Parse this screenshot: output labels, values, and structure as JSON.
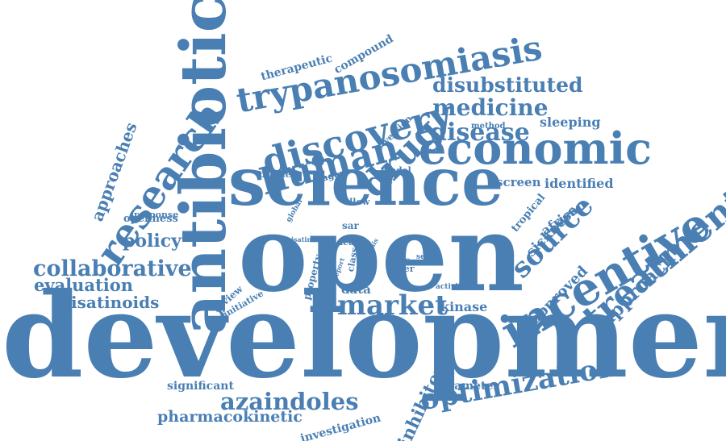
{
  "color": "#4a7fb3",
  "words": [
    "development",
    "open",
    "science",
    "antibiotic",
    "incentive",
    "economic",
    "discovery",
    "trypanosomiasis",
    "human",
    "drug",
    "research",
    "treatment",
    "market",
    "source",
    "collaborative",
    "optimization",
    "azaindoles",
    "medicine",
    "disease",
    "disubstituted",
    "approach",
    "policy",
    "evaluation",
    "isatinoids",
    "approaches",
    "pharmacokinetic",
    "inhibitor",
    "approved",
    "sleeping",
    "screen",
    "identified",
    "african",
    "tropical",
    "sickness",
    "data",
    "kinase",
    "compound",
    "therapeutic",
    "openness",
    "significant",
    "investigation",
    "parameter",
    "response",
    "problem",
    "agent",
    "model",
    "allow",
    "method",
    "version",
    "sar",
    "lead",
    "class",
    "acc",
    "peer",
    "series",
    "activity",
    "property",
    "review",
    "initiative",
    "global",
    "isatin",
    "report",
    "crisis"
  ]
}
